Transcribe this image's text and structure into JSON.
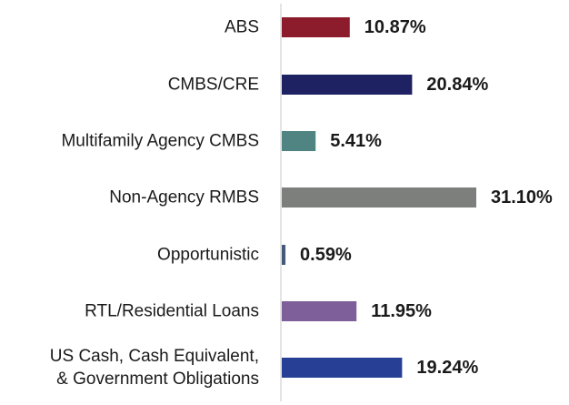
{
  "chart_data": {
    "type": "bar",
    "orientation": "horizontal",
    "categories": [
      [
        "ABS"
      ],
      [
        "CMBS/CRE"
      ],
      [
        "Multifamily Agency CMBS"
      ],
      [
        "Non-Agency RMBS"
      ],
      [
        "Opportunistic"
      ],
      [
        "RTL/Residential Loans"
      ],
      [
        "US Cash, Cash Equivalent,",
        "& Government Obligations"
      ]
    ],
    "values": [
      10.87,
      20.84,
      5.41,
      31.1,
      0.59,
      11.95,
      19.24
    ],
    "value_labels": [
      "10.87%",
      "20.84%",
      "5.41%",
      "31.10%",
      "0.59%",
      "11.95%",
      "19.24%"
    ],
    "colors": [
      "#8c1c2c",
      "#1e2262",
      "#4f8482",
      "#7c7f7b",
      "#465a7c",
      "#7e5f99",
      "#283f96"
    ],
    "title": "",
    "xlabel": "",
    "ylabel": "",
    "xlim": [
      0,
      31.1
    ],
    "grid": false,
    "legend": "none",
    "axis_line_color": "#c8c8c8"
  }
}
